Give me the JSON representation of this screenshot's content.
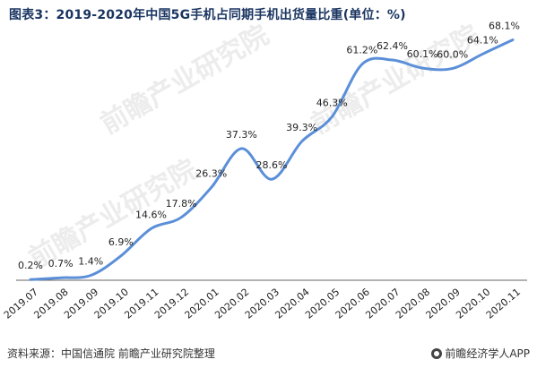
{
  "title": "图表3：2019-2020年中国5G手机占同期手机出货量比重(单位：%)",
  "source": "资料来源：中国信通院 前瞻产业研究院整理",
  "brand": "前瞻经济学人APP",
  "watermark": "前瞻产业研究院",
  "colors": {
    "line": "#5b8fd8",
    "title": "#1a3561",
    "axis": "#666666"
  },
  "chart_data": {
    "type": "line",
    "title": "图表3：2019-2020年中国5G手机占同期手机出货量比重(单位：%)",
    "xlabel": "",
    "ylabel": "",
    "ylim": [
      0,
      70
    ],
    "grid": false,
    "categories": [
      "2019.07",
      "2019.08",
      "2019.09",
      "2019.10",
      "2019.11",
      "2019.12",
      "2020.01",
      "2020.02",
      "2020.03",
      "2020.04",
      "2020.05",
      "2020.06",
      "2020.07",
      "2020.08",
      "2020.09",
      "2020.10",
      "2020.11"
    ],
    "values": [
      0.2,
      0.7,
      1.4,
      6.9,
      14.6,
      17.8,
      26.3,
      37.3,
      28.6,
      39.3,
      46.3,
      61.2,
      62.4,
      60.1,
      60.0,
      64.1,
      68.1
    ],
    "labels": [
      "0.2%",
      "0.7%",
      "1.4%",
      "6.9%",
      "14.6%",
      "17.8%",
      "26.3%",
      "37.3%",
      "28.6%",
      "39.3%",
      "46.3%",
      "61.2%",
      "62.4%",
      "60.1%",
      "60.0%",
      "64.1%",
      "68.1%"
    ]
  }
}
